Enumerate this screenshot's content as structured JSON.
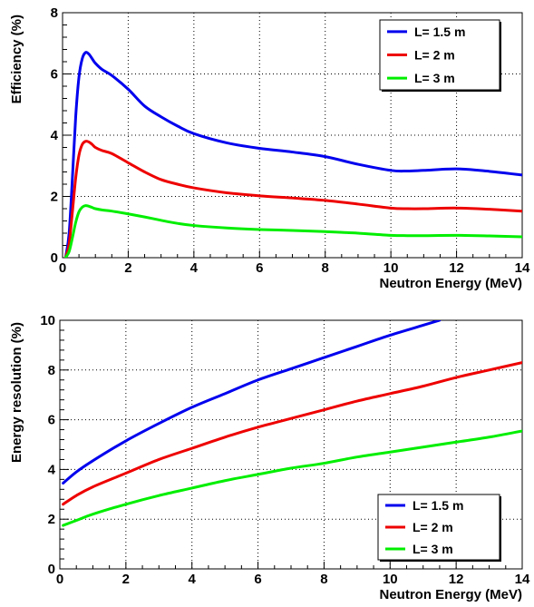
{
  "chart_data": [
    {
      "type": "line",
      "title": "",
      "xlabel": "Neutron Energy (MeV)",
      "ylabel": "Efficiency (%)",
      "xlim": [
        0,
        14
      ],
      "ylim": [
        0,
        8
      ],
      "xticks": [
        0,
        2,
        4,
        6,
        8,
        10,
        12,
        14
      ],
      "yticks": [
        0,
        2,
        4,
        6,
        8
      ],
      "grid": true,
      "legend_position": "top-right",
      "series": [
        {
          "name": "L= 1.5 m",
          "color": "#0000ee",
          "x": [
            0.1,
            0.2,
            0.3,
            0.4,
            0.5,
            0.6,
            0.7,
            0.8,
            0.9,
            1.0,
            1.2,
            1.5,
            2.0,
            2.5,
            3.0,
            3.5,
            4.0,
            5.0,
            6.0,
            7.0,
            8.0,
            9.0,
            10.0,
            10.5,
            11.0,
            12.0,
            13.0,
            14.0
          ],
          "y": [
            0.05,
            0.8,
            2.6,
            4.6,
            5.9,
            6.5,
            6.7,
            6.65,
            6.5,
            6.35,
            6.15,
            5.95,
            5.5,
            4.95,
            4.6,
            4.3,
            4.05,
            3.75,
            3.57,
            3.45,
            3.3,
            3.05,
            2.85,
            2.83,
            2.85,
            2.9,
            2.82,
            2.7
          ]
        },
        {
          "name": "L= 2 m",
          "color": "#ee0000",
          "x": [
            0.1,
            0.2,
            0.3,
            0.4,
            0.5,
            0.6,
            0.7,
            0.8,
            0.9,
            1.0,
            1.2,
            1.5,
            2.0,
            2.5,
            3.0,
            3.5,
            4.0,
            5.0,
            6.0,
            7.0,
            8.0,
            9.0,
            10.0,
            10.5,
            11.0,
            12.0,
            13.0,
            14.0
          ],
          "y": [
            0.03,
            0.45,
            1.5,
            2.6,
            3.35,
            3.7,
            3.8,
            3.78,
            3.7,
            3.6,
            3.5,
            3.4,
            3.1,
            2.8,
            2.55,
            2.4,
            2.28,
            2.12,
            2.02,
            1.95,
            1.87,
            1.75,
            1.62,
            1.6,
            1.6,
            1.62,
            1.58,
            1.52
          ]
        },
        {
          "name": "L= 3 m",
          "color": "#00ee00",
          "x": [
            0.1,
            0.2,
            0.3,
            0.4,
            0.5,
            0.6,
            0.7,
            0.8,
            0.9,
            1.0,
            1.2,
            1.5,
            2.0,
            2.5,
            3.0,
            3.5,
            4.0,
            5.0,
            6.0,
            7.0,
            8.0,
            9.0,
            10.0,
            10.5,
            11.0,
            12.0,
            13.0,
            14.0
          ],
          "y": [
            0.02,
            0.2,
            0.65,
            1.15,
            1.5,
            1.65,
            1.7,
            1.68,
            1.64,
            1.6,
            1.56,
            1.52,
            1.43,
            1.33,
            1.22,
            1.12,
            1.05,
            0.97,
            0.92,
            0.89,
            0.85,
            0.8,
            0.73,
            0.72,
            0.72,
            0.73,
            0.71,
            0.68
          ]
        }
      ]
    },
    {
      "type": "line",
      "title": "",
      "xlabel": "Neutron Energy (MeV)",
      "ylabel": "Energy resolution (%)",
      "xlim": [
        0,
        14
      ],
      "ylim": [
        0,
        10
      ],
      "xticks": [
        0,
        2,
        4,
        6,
        8,
        10,
        12,
        14
      ],
      "yticks": [
        0,
        2,
        4,
        6,
        8,
        10
      ],
      "grid": true,
      "legend_position": "bottom-right",
      "series": [
        {
          "name": "L= 1.5 m",
          "color": "#0000ee",
          "x": [
            0.1,
            0.5,
            1.0,
            2.0,
            3.0,
            4.0,
            5.0,
            6.0,
            7.0,
            8.0,
            9.0,
            10.0,
            11.0,
            11.5
          ],
          "y": [
            3.45,
            3.9,
            4.35,
            5.15,
            5.85,
            6.5,
            7.05,
            7.6,
            8.05,
            8.5,
            8.95,
            9.4,
            9.8,
            10.0
          ]
        },
        {
          "name": "L= 2 m",
          "color": "#ee0000",
          "x": [
            0.1,
            0.5,
            1.0,
            2.0,
            3.0,
            4.0,
            5.0,
            6.0,
            7.0,
            8.0,
            9.0,
            10.0,
            11.0,
            12.0,
            13.0,
            14.0
          ],
          "y": [
            2.6,
            2.95,
            3.3,
            3.85,
            4.4,
            4.85,
            5.3,
            5.7,
            6.05,
            6.4,
            6.75,
            7.05,
            7.35,
            7.7,
            8.0,
            8.3
          ]
        },
        {
          "name": "L= 3 m",
          "color": "#00ee00",
          "x": [
            0.1,
            0.5,
            1.0,
            2.0,
            3.0,
            4.0,
            5.0,
            6.0,
            7.0,
            8.0,
            9.0,
            10.0,
            11.0,
            12.0,
            13.0,
            14.0
          ],
          "y": [
            1.75,
            1.95,
            2.2,
            2.6,
            2.95,
            3.25,
            3.55,
            3.8,
            4.05,
            4.25,
            4.5,
            4.7,
            4.9,
            5.1,
            5.3,
            5.55
          ]
        }
      ]
    }
  ]
}
